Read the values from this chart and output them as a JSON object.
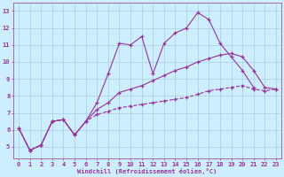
{
  "xlabel": "Windchill (Refroidissement éolien,°C)",
  "bg_color": "#cceeff",
  "line_color": "#993399",
  "grid_color": "#aaccdd",
  "xlim": [
    -0.5,
    23.5
  ],
  "ylim": [
    4.3,
    13.5
  ],
  "xticks": [
    0,
    1,
    2,
    3,
    4,
    5,
    6,
    7,
    8,
    9,
    10,
    11,
    12,
    13,
    14,
    15,
    16,
    17,
    18,
    19,
    20,
    21,
    22,
    23
  ],
  "yticks": [
    5,
    6,
    7,
    8,
    9,
    10,
    11,
    12,
    13
  ],
  "series": [
    {
      "x": [
        0,
        1,
        2,
        3,
        4,
        5,
        6,
        7,
        8,
        9,
        10,
        11,
        12,
        13,
        14,
        15,
        16,
        17,
        18,
        19,
        20,
        21,
        22,
        23
      ],
      "y": [
        6.1,
        4.8,
        5.1,
        6.5,
        6.6,
        5.7,
        6.5,
        7.6,
        9.3,
        11.1,
        11.0,
        11.5,
        9.3,
        11.1,
        11.7,
        12.0,
        12.9,
        12.5,
        11.1,
        10.3,
        9.5,
        8.5,
        null,
        null
      ],
      "linestyle": "-"
    },
    {
      "x": [
        0,
        1,
        2,
        3,
        4,
        5,
        6,
        7,
        8,
        9,
        10,
        11,
        12,
        13,
        14,
        15,
        16,
        17,
        18,
        19,
        20,
        21,
        22,
        23
      ],
      "y": [
        6.1,
        4.8,
        5.1,
        6.5,
        6.6,
        5.7,
        6.5,
        7.2,
        7.6,
        8.2,
        8.4,
        8.6,
        8.9,
        9.2,
        9.5,
        9.7,
        10.0,
        10.2,
        10.4,
        10.5,
        10.3,
        9.5,
        8.5,
        8.4
      ],
      "linestyle": "-"
    },
    {
      "x": [
        0,
        1,
        2,
        3,
        4,
        5,
        6,
        7,
        8,
        9,
        10,
        11,
        12,
        13,
        14,
        15,
        16,
        17,
        18,
        19,
        20,
        21,
        22,
        23
      ],
      "y": [
        6.1,
        4.8,
        5.1,
        6.5,
        6.6,
        5.7,
        6.5,
        6.9,
        7.1,
        7.3,
        7.4,
        7.5,
        7.6,
        7.7,
        7.8,
        7.9,
        8.1,
        8.3,
        8.4,
        8.5,
        8.6,
        8.4,
        8.3,
        8.4
      ],
      "linestyle": "--"
    }
  ]
}
